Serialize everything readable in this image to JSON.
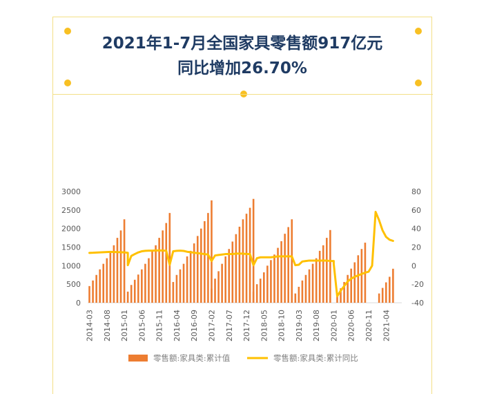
{
  "header": {
    "title_line1": "2021年1-7月全国家具零售额917亿元",
    "title_line2": "同比增加26.70%"
  },
  "colors": {
    "bar": "#ed7d31",
    "line": "#ffc000",
    "title": "#1f3b63",
    "dot": "#f8c023"
  },
  "chart_data": {
    "type": "bar+line",
    "x_tick_labels": [
      "2014-03",
      "2014-08",
      "2015-01",
      "2015-06",
      "2015-11",
      "2016-04",
      "2016-09",
      "2017-02",
      "2017-07",
      "2017-12",
      "2018-05",
      "2018-10",
      "2019-03",
      "2019-08",
      "2020-01",
      "2020-06",
      "2020-11",
      "2021-04"
    ],
    "y_left": {
      "min": 0,
      "max": 3000,
      "ticks": [
        0,
        500,
        1000,
        1500,
        2000,
        2500,
        3000
      ]
    },
    "y_right": {
      "min": -40,
      "max": 80,
      "ticks": [
        -40,
        -20,
        0,
        20,
        40,
        60,
        80
      ]
    },
    "legend": [
      "零售额:家具类:累计值",
      "零售额:家具类:累计同比"
    ],
    "series": [
      {
        "name": "零售额:家具类:累计值",
        "axis": "left",
        "type": "bar",
        "groups": [
          {
            "start": "2014-03",
            "values": [
              450,
              600,
              750,
              900,
              1050,
              1200,
              1350,
              1550,
              1750,
              1950,
              2250
            ]
          },
          {
            "start": "2015-02",
            "values": [
              300,
              480,
              620,
              760,
              900,
              1050,
              1200,
              1400,
              1550,
              1750,
              1950,
              2150,
              2420
            ]
          },
          {
            "start": "2016-02",
            "values": [
              350,
              560,
              750,
              900,
              1050,
              1250,
              1400,
              1600,
              1800,
              2000,
              2200,
              2420,
              2760
            ]
          },
          {
            "start": "2017-02",
            "values": [
              380,
              650,
              850,
              1050,
              1250,
              1450,
              1650,
              1850,
              2050,
              2250,
              2400,
              2560,
              2800
            ]
          },
          {
            "start": "2018-02",
            "values": [
              300,
              500,
              650,
              820,
              1000,
              1150,
              1300,
              1480,
              1660,
              1860,
              2040,
              2250
            ]
          },
          {
            "start": "2019-02",
            "values": [
              250,
              430,
              600,
              750,
              900,
              1050,
              1200,
              1400,
              1550,
              1750,
              1960
            ]
          },
          {
            "start": "2020-02",
            "values": [
              220,
              390,
              560,
              750,
              920,
              1090,
              1280,
              1450,
              1620
            ]
          },
          {
            "start": "2021-02",
            "values": [
              250,
              400,
              550,
              700,
              917
            ]
          }
        ]
      },
      {
        "name": "零售额:家具类:累计同比",
        "axis": "right",
        "type": "line",
        "segments": [
          {
            "start": "2014-03",
            "values": [
              13.8,
              13.9,
              14.1,
              14.3,
              14.5,
              14.7,
              14.9,
              14.8,
              14.6,
              14.5,
              14.3,
              13.9
            ]
          },
          {
            "start": "2015-02",
            "values": [
              0.5,
              10.5,
              12.5,
              14.3,
              15.5,
              16,
              16.2,
              16.2,
              16.4,
              16.5,
              16.3,
              16.2
            ]
          },
          {
            "start": "2016-02",
            "values": [
              1,
              15.5,
              16,
              16.2,
              15.9,
              15,
              14.5,
              14,
              13.5,
              13,
              12.5,
              12
            ]
          },
          {
            "start": "2017-02",
            "values": [
              5,
              11,
              11.5,
              12,
              12.5,
              12.5,
              12.5,
              13,
              13,
              13,
              12.5,
              12.5
            ]
          },
          {
            "start": "2018-02",
            "values": [
              0.5,
              8,
              9,
              9,
              9,
              9,
              9.5,
              10,
              10,
              10,
              10,
              10
            ]
          },
          {
            "start": "2019-02",
            "values": [
              0.5,
              1,
              4.5,
              5,
              5.5,
              5.5,
              5.5,
              5.5,
              5.5,
              5.5,
              5,
              5
            ]
          },
          {
            "start": "2020-01",
            "values": [
              2,
              -33,
              -27,
              -22,
              -17,
              -14,
              -12,
              -10.5,
              -9,
              -7.5,
              -6.5,
              0
            ]
          },
          {
            "start": "2021-01",
            "values": [
              58,
              49,
              38,
              31,
              28,
              26.7
            ]
          }
        ]
      }
    ]
  }
}
